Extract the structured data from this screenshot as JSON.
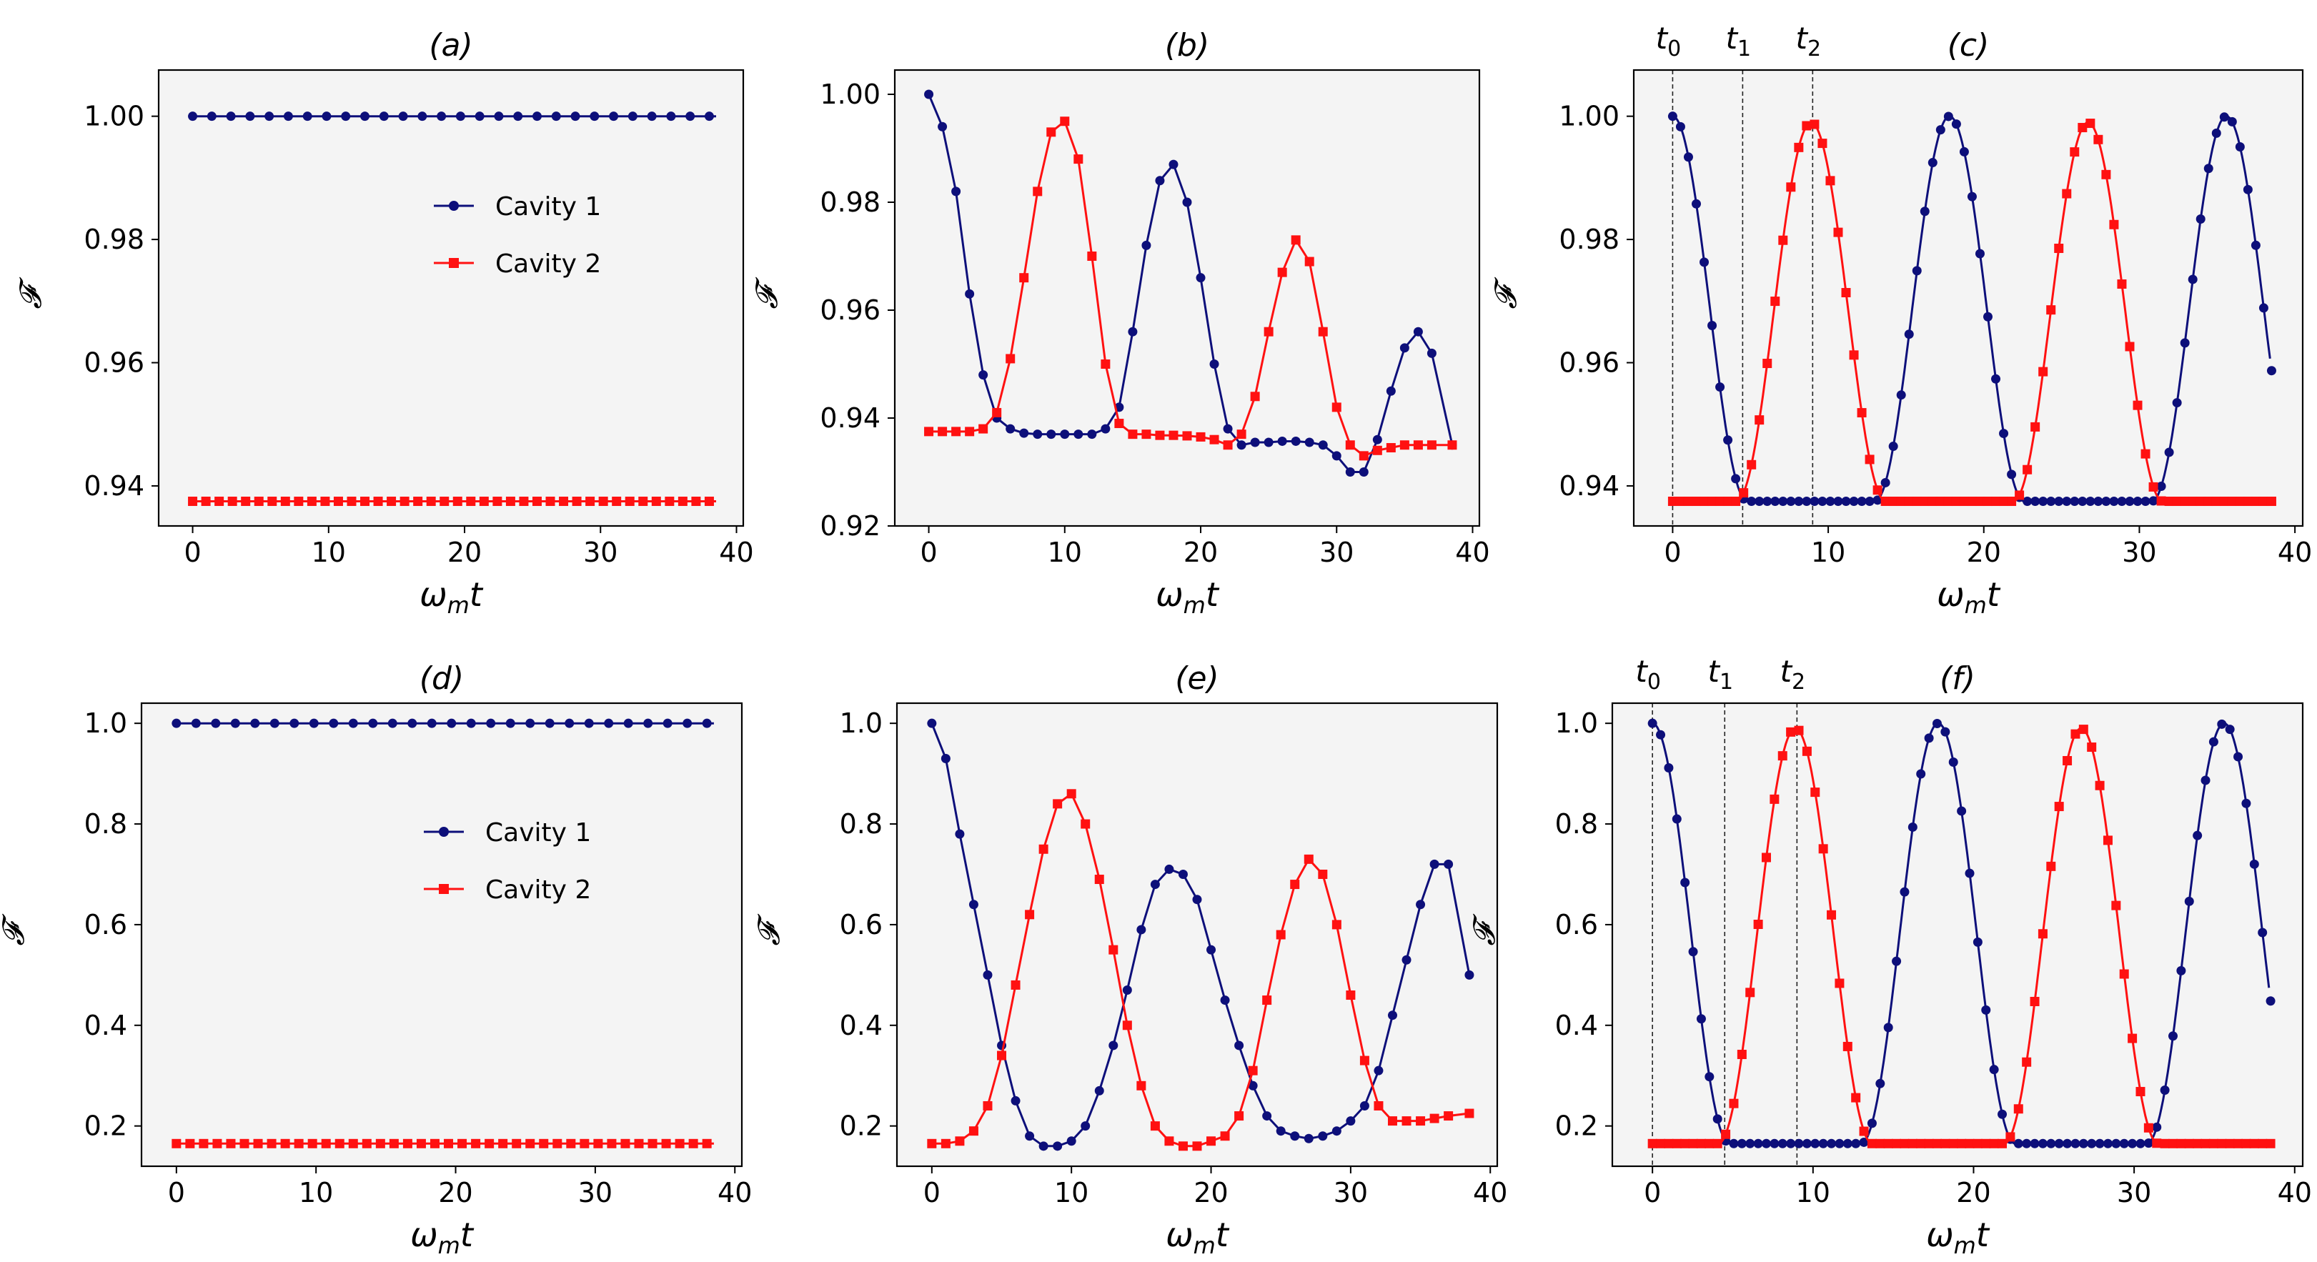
{
  "colors": {
    "cavity1": "#0d0f7a",
    "cavity2": "#ff1111",
    "plot_bg": "#f4f4f4"
  },
  "chart_data": [
    {
      "type": "line",
      "title": "(a)",
      "xlabel": "ω_m t",
      "ylabel": "𝓕",
      "xlim": [
        -2.5,
        40.5
      ],
      "ylim": [
        0.9335,
        1.0075
      ],
      "xticks": [
        0,
        10,
        20,
        30,
        40
      ],
      "xtick_labels": [
        "0",
        "10",
        "20",
        "30",
        "40"
      ],
      "yticks": [
        0.94,
        0.96,
        0.98,
        1.0
      ],
      "ytick_labels": [
        "0.94",
        "0.96",
        "0.98",
        "1.00"
      ],
      "legend": {
        "entries": [
          "Cavity 1",
          "Cavity 2"
        ],
        "placement": "center-right"
      },
      "series": [
        {
          "name": "Cavity 1",
          "marker": "circle",
          "x": [
            0,
            38.5
          ],
          "values": [
            1.0,
            1.0
          ]
        },
        {
          "name": "Cavity 2",
          "marker": "square",
          "x": [
            0,
            38.5
          ],
          "values": [
            0.9375,
            0.9375
          ]
        }
      ]
    },
    {
      "type": "line",
      "title": "(b)",
      "xlabel": "ω_m t",
      "ylabel": "𝓕",
      "xlim": [
        -2.5,
        40.5
      ],
      "ylim": [
        0.92,
        1.0045
      ],
      "xticks": [
        0,
        10,
        20,
        30,
        40
      ],
      "xtick_labels": [
        "0",
        "10",
        "20",
        "30",
        "40"
      ],
      "yticks": [
        0.92,
        0.94,
        0.96,
        0.98,
        1.0
      ],
      "ytick_labels": [
        "0.92",
        "0.94",
        "0.96",
        "0.98",
        "1.00"
      ],
      "series": [
        {
          "name": "Cavity 1",
          "marker": "circle",
          "x": [
            0,
            1,
            2,
            3,
            4,
            5,
            6,
            7,
            8,
            9,
            10,
            11,
            12,
            13,
            14,
            15,
            16,
            17,
            18,
            19,
            20,
            21,
            22,
            23,
            24,
            25,
            26,
            27,
            28,
            29,
            30,
            31,
            32,
            33,
            34,
            35,
            36,
            37,
            38.5
          ],
          "values": [
            1.0,
            0.994,
            0.982,
            0.963,
            0.948,
            0.94,
            0.938,
            0.9372,
            0.937,
            0.937,
            0.937,
            0.937,
            0.937,
            0.938,
            0.942,
            0.956,
            0.972,
            0.984,
            0.987,
            0.98,
            0.966,
            0.95,
            0.938,
            0.935,
            0.9355,
            0.9355,
            0.9357,
            0.9357,
            0.9355,
            0.935,
            0.933,
            0.93,
            0.93,
            0.936,
            0.945,
            0.953,
            0.956,
            0.952,
            0.935
          ]
        },
        {
          "name": "Cavity 2",
          "marker": "square",
          "x": [
            0,
            1,
            2,
            3,
            4,
            5,
            6,
            7,
            8,
            9,
            10,
            11,
            12,
            13,
            14,
            15,
            16,
            17,
            18,
            19,
            20,
            21,
            22,
            23,
            24,
            25,
            26,
            27,
            28,
            29,
            30,
            31,
            32,
            33,
            34,
            35,
            36,
            37,
            38.5
          ],
          "values": [
            0.9375,
            0.9375,
            0.9375,
            0.9375,
            0.938,
            0.941,
            0.951,
            0.966,
            0.982,
            0.993,
            0.995,
            0.988,
            0.97,
            0.95,
            0.939,
            0.937,
            0.937,
            0.9368,
            0.9368,
            0.9367,
            0.9365,
            0.936,
            0.935,
            0.937,
            0.944,
            0.956,
            0.967,
            0.973,
            0.969,
            0.956,
            0.942,
            0.935,
            0.933,
            0.934,
            0.9345,
            0.935,
            0.935,
            0.935,
            0.935
          ]
        }
      ]
    },
    {
      "type": "line",
      "title": "(c)",
      "xlabel": "ω_m t",
      "ylabel": "𝓕",
      "xlim": [
        -2.5,
        40.5
      ],
      "ylim": [
        0.9335,
        1.0075
      ],
      "xticks": [
        0,
        10,
        20,
        30,
        40
      ],
      "xtick_labels": [
        "0",
        "10",
        "20",
        "30",
        "40"
      ],
      "yticks": [
        0.94,
        0.96,
        0.98,
        1.0
      ],
      "ytick_labels": [
        "0.94",
        "0.96",
        "0.98",
        "1.00"
      ],
      "vlines": [
        {
          "x": 0,
          "label": "t0",
          "label_main": "t",
          "label_sub": "0"
        },
        {
          "x": 4.5,
          "label": "t1",
          "label_main": "t",
          "label_sub": "1"
        },
        {
          "x": 9,
          "label": "t2",
          "label_main": "t",
          "label_sub": "2"
        }
      ],
      "series": [
        {
          "name": "Cavity 1",
          "marker": "circle",
          "x": "dense",
          "shape": "periodic",
          "period": 17.8,
          "phase": 0,
          "ymin": 0.9375,
          "ymax": 1.0
        },
        {
          "name": "Cavity 2",
          "marker": "square",
          "x": "dense",
          "shape": "periodic",
          "period": 17.8,
          "phase": 8.9,
          "ymin": 0.9375,
          "ymax": 0.999
        }
      ]
    },
    {
      "type": "line",
      "title": "(d)",
      "xlabel": "ω_m t",
      "ylabel": "𝓕",
      "xlim": [
        -2.5,
        40.5
      ],
      "ylim": [
        0.12,
        1.04
      ],
      "xticks": [
        0,
        10,
        20,
        30,
        40
      ],
      "xtick_labels": [
        "0",
        "10",
        "20",
        "30",
        "40"
      ],
      "yticks": [
        0.2,
        0.4,
        0.6,
        0.8,
        1.0
      ],
      "ytick_labels": [
        "0.2",
        "0.4",
        "0.6",
        "0.8",
        "1.0"
      ],
      "legend": {
        "entries": [
          "Cavity 1",
          "Cavity 2"
        ],
        "placement": "center-right"
      },
      "series": [
        {
          "name": "Cavity 1",
          "marker": "circle",
          "x": [
            0,
            38.5
          ],
          "values": [
            1.0,
            1.0
          ]
        },
        {
          "name": "Cavity 2",
          "marker": "square",
          "x": [
            0,
            38.5
          ],
          "values": [
            0.165,
            0.165
          ]
        }
      ]
    },
    {
      "type": "line",
      "title": "(e)",
      "xlabel": "ω_m t",
      "ylabel": "𝓕",
      "xlim": [
        -2.5,
        40.5
      ],
      "ylim": [
        0.12,
        1.04
      ],
      "xticks": [
        0,
        10,
        20,
        30,
        40
      ],
      "xtick_labels": [
        "0",
        "10",
        "20",
        "30",
        "40"
      ],
      "yticks": [
        0.2,
        0.4,
        0.6,
        0.8,
        1.0
      ],
      "ytick_labels": [
        "0.2",
        "0.4",
        "0.6",
        "0.8",
        "1.0"
      ],
      "series": [
        {
          "name": "Cavity 1",
          "marker": "circle",
          "x": [
            0,
            1,
            2,
            3,
            4,
            5,
            6,
            7,
            8,
            9,
            10,
            11,
            12,
            13,
            14,
            15,
            16,
            17,
            18,
            19,
            20,
            21,
            22,
            23,
            24,
            25,
            26,
            27,
            28,
            29,
            30,
            31,
            32,
            33,
            34,
            35,
            36,
            37,
            38.5
          ],
          "values": [
            1.0,
            0.93,
            0.78,
            0.64,
            0.5,
            0.36,
            0.25,
            0.18,
            0.16,
            0.16,
            0.17,
            0.2,
            0.27,
            0.36,
            0.47,
            0.59,
            0.68,
            0.71,
            0.7,
            0.65,
            0.55,
            0.45,
            0.36,
            0.28,
            0.22,
            0.19,
            0.18,
            0.175,
            0.18,
            0.19,
            0.21,
            0.24,
            0.31,
            0.42,
            0.53,
            0.64,
            0.72,
            0.72,
            0.5
          ]
        },
        {
          "name": "Cavity 2",
          "marker": "square",
          "x": [
            0,
            1,
            2,
            3,
            4,
            5,
            6,
            7,
            8,
            9,
            10,
            11,
            12,
            13,
            14,
            15,
            16,
            17,
            18,
            19,
            20,
            21,
            22,
            23,
            24,
            25,
            26,
            27,
            28,
            29,
            30,
            31,
            32,
            33,
            34,
            35,
            36,
            37,
            38.5
          ],
          "values": [
            0.165,
            0.165,
            0.17,
            0.19,
            0.24,
            0.34,
            0.48,
            0.62,
            0.75,
            0.84,
            0.86,
            0.8,
            0.69,
            0.55,
            0.4,
            0.28,
            0.2,
            0.17,
            0.16,
            0.16,
            0.17,
            0.18,
            0.22,
            0.31,
            0.45,
            0.58,
            0.68,
            0.73,
            0.7,
            0.6,
            0.46,
            0.33,
            0.24,
            0.21,
            0.21,
            0.21,
            0.215,
            0.22,
            0.225
          ]
        }
      ]
    },
    {
      "type": "line",
      "title": "(f)",
      "xlabel": "ω_m t",
      "ylabel": "𝓕",
      "xlim": [
        -2.5,
        40.5
      ],
      "ylim": [
        0.12,
        1.04
      ],
      "xticks": [
        0,
        10,
        20,
        30,
        40
      ],
      "xtick_labels": [
        "0",
        "10",
        "20",
        "30",
        "40"
      ],
      "yticks": [
        0.2,
        0.4,
        0.6,
        0.8,
        1.0
      ],
      "ytick_labels": [
        "0.2",
        "0.4",
        "0.6",
        "0.8",
        "1.0"
      ],
      "vlines": [
        {
          "x": 0,
          "label": "t0",
          "label_main": "t",
          "label_sub": "0"
        },
        {
          "x": 4.5,
          "label": "t1",
          "label_main": "t",
          "label_sub": "1"
        },
        {
          "x": 9,
          "label": "t2",
          "label_main": "t",
          "label_sub": "2"
        }
      ],
      "series": [
        {
          "name": "Cavity 1",
          "marker": "circle",
          "x": "dense",
          "shape": "periodic",
          "period": 17.8,
          "phase": 0,
          "ymin": 0.165,
          "ymax": 1.0
        },
        {
          "name": "Cavity 2",
          "marker": "square",
          "x": "dense",
          "shape": "periodic",
          "period": 17.8,
          "phase": 8.9,
          "ymin": 0.165,
          "ymax": 0.99
        }
      ]
    }
  ]
}
